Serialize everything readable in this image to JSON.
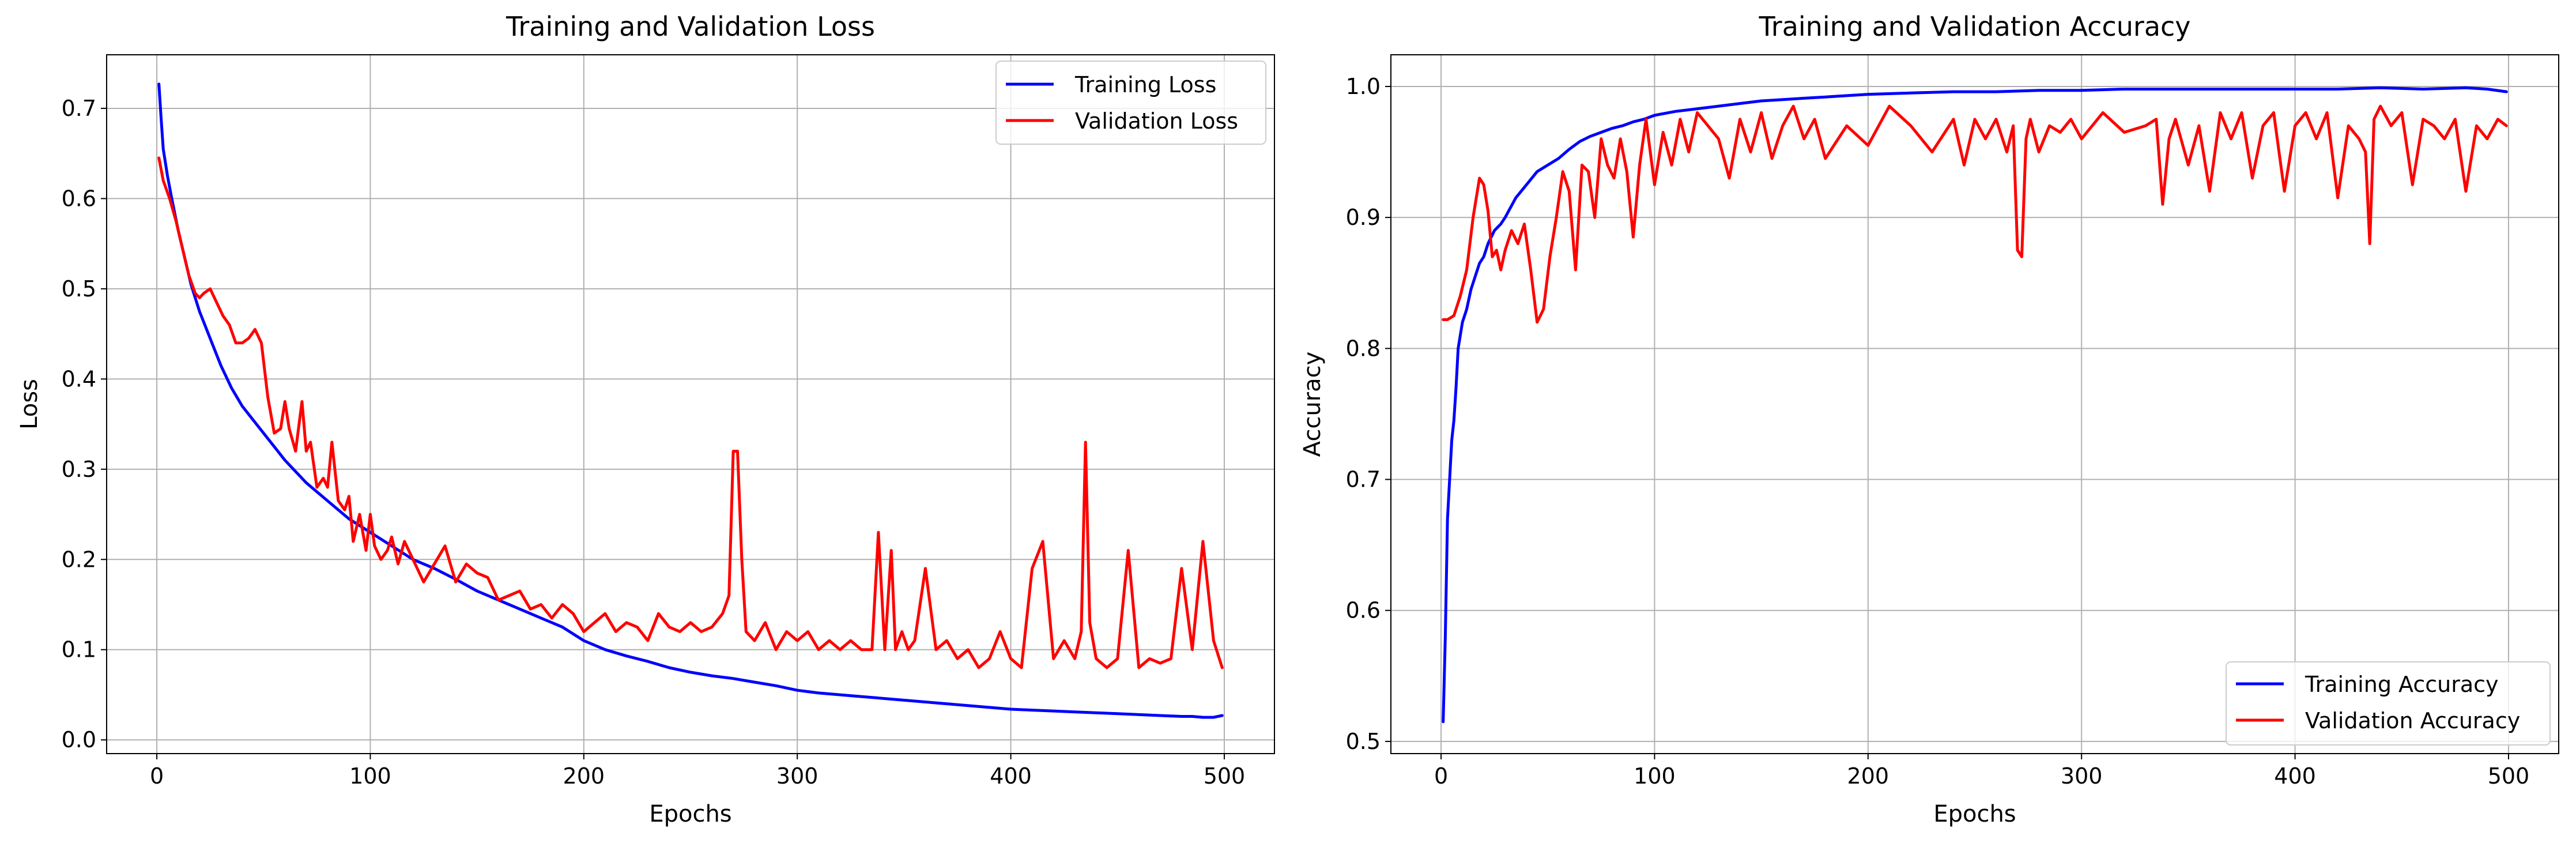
{
  "figure": {
    "colors": {
      "training": "#0000ff",
      "validation": "#ff0000",
      "grid": "#b0b0b0",
      "axes": "#000000",
      "legend_border": "#cccccc"
    }
  },
  "chart_data": [
    {
      "type": "line",
      "title": "Training and Validation Loss",
      "xlabel": "Epochs",
      "ylabel": "Loss",
      "xlim": [
        -23.5,
        523.5
      ],
      "ylim": [
        -0.0152,
        0.7594
      ],
      "x_ticks": [
        0,
        100,
        200,
        300,
        400,
        500
      ],
      "y_ticks": [
        0.0,
        0.1,
        0.2,
        0.3,
        0.4,
        0.5,
        0.6,
        0.7
      ],
      "x_tick_labels": [
        "0",
        "100",
        "200",
        "300",
        "400",
        "500"
      ],
      "y_tick_labels": [
        "0.0",
        "0.1",
        "0.2",
        "0.3",
        "0.4",
        "0.5",
        "0.6",
        "0.7"
      ],
      "grid": true,
      "legend_position": "top-right",
      "series": [
        {
          "name": "Training Loss",
          "color": "#0000ff",
          "x": [
            1,
            2,
            3,
            5,
            7,
            10,
            13,
            16,
            20,
            25,
            30,
            35,
            40,
            45,
            50,
            55,
            60,
            70,
            80,
            90,
            100,
            110,
            120,
            130,
            140,
            150,
            160,
            170,
            180,
            190,
            200,
            210,
            220,
            230,
            240,
            250,
            260,
            270,
            280,
            290,
            300,
            310,
            320,
            330,
            340,
            350,
            360,
            370,
            380,
            390,
            400,
            410,
            420,
            430,
            440,
            450,
            460,
            470,
            480,
            485,
            490,
            495,
            499
          ],
          "y": [
            0.727,
            0.69,
            0.655,
            0.625,
            0.6,
            0.565,
            0.535,
            0.505,
            0.475,
            0.445,
            0.415,
            0.39,
            0.37,
            0.355,
            0.34,
            0.325,
            0.31,
            0.285,
            0.265,
            0.245,
            0.23,
            0.215,
            0.2,
            0.19,
            0.178,
            0.165,
            0.155,
            0.145,
            0.135,
            0.125,
            0.11,
            0.1,
            0.093,
            0.087,
            0.08,
            0.075,
            0.071,
            0.068,
            0.064,
            0.06,
            0.055,
            0.052,
            0.05,
            0.048,
            0.046,
            0.044,
            0.042,
            0.04,
            0.038,
            0.036,
            0.034,
            0.033,
            0.032,
            0.031,
            0.03,
            0.029,
            0.028,
            0.027,
            0.026,
            0.026,
            0.025,
            0.025,
            0.027
          ]
        },
        {
          "name": "Validation Loss",
          "color": "#ff0000",
          "x": [
            1,
            3,
            6,
            9,
            12,
            15,
            18,
            20,
            22,
            25,
            28,
            31,
            34,
            37,
            40,
            43,
            46,
            49,
            52,
            55,
            58,
            60,
            62,
            65,
            68,
            70,
            72,
            75,
            78,
            80,
            82,
            85,
            88,
            90,
            92,
            95,
            98,
            100,
            102,
            105,
            108,
            110,
            113,
            116,
            120,
            125,
            130,
            135,
            140,
            145,
            150,
            155,
            160,
            165,
            170,
            175,
            180,
            185,
            190,
            195,
            200,
            205,
            210,
            215,
            220,
            225,
            230,
            235,
            240,
            245,
            250,
            255,
            260,
            265,
            268,
            270,
            272,
            274,
            276,
            280,
            285,
            290,
            295,
            300,
            305,
            310,
            315,
            320,
            325,
            330,
            335,
            338,
            341,
            344,
            346,
            349,
            352,
            355,
            360,
            365,
            370,
            375,
            380,
            385,
            390,
            395,
            400,
            405,
            410,
            415,
            420,
            425,
            430,
            433,
            435,
            437,
            440,
            445,
            450,
            455,
            460,
            465,
            470,
            475,
            480,
            485,
            490,
            495,
            499
          ],
          "y": [
            0.645,
            0.62,
            0.6,
            0.575,
            0.545,
            0.515,
            0.495,
            0.49,
            0.495,
            0.5,
            0.485,
            0.47,
            0.46,
            0.44,
            0.44,
            0.445,
            0.455,
            0.44,
            0.38,
            0.34,
            0.345,
            0.375,
            0.345,
            0.32,
            0.375,
            0.32,
            0.33,
            0.28,
            0.29,
            0.28,
            0.33,
            0.265,
            0.255,
            0.27,
            0.22,
            0.25,
            0.21,
            0.25,
            0.215,
            0.2,
            0.21,
            0.225,
            0.195,
            0.22,
            0.2,
            0.175,
            0.195,
            0.215,
            0.175,
            0.195,
            0.185,
            0.18,
            0.155,
            0.16,
            0.165,
            0.145,
            0.15,
            0.135,
            0.15,
            0.14,
            0.12,
            0.13,
            0.14,
            0.12,
            0.13,
            0.125,
            0.11,
            0.14,
            0.125,
            0.12,
            0.13,
            0.12,
            0.125,
            0.14,
            0.16,
            0.32,
            0.32,
            0.2,
            0.12,
            0.11,
            0.13,
            0.1,
            0.12,
            0.11,
            0.12,
            0.1,
            0.11,
            0.1,
            0.11,
            0.1,
            0.1,
            0.23,
            0.1,
            0.21,
            0.1,
            0.12,
            0.1,
            0.11,
            0.19,
            0.1,
            0.11,
            0.09,
            0.1,
            0.08,
            0.09,
            0.12,
            0.09,
            0.08,
            0.19,
            0.22,
            0.09,
            0.11,
            0.09,
            0.12,
            0.33,
            0.13,
            0.09,
            0.08,
            0.09,
            0.21,
            0.08,
            0.09,
            0.085,
            0.09,
            0.19,
            0.1,
            0.22,
            0.11,
            0.08
          ]
        }
      ]
    },
    {
      "type": "line",
      "title": "Training and Validation Accuracy",
      "xlabel": "Epochs",
      "ylabel": "Accuracy",
      "xlim": [
        -23.5,
        523.5
      ],
      "ylim": [
        0.4907,
        1.0242
      ],
      "x_ticks": [
        0,
        100,
        200,
        300,
        400,
        500
      ],
      "y_ticks": [
        0.5,
        0.6,
        0.7,
        0.8,
        0.9,
        1.0
      ],
      "x_tick_labels": [
        "0",
        "100",
        "200",
        "300",
        "400",
        "500"
      ],
      "y_tick_labels": [
        "0.5",
        "0.6",
        "0.7",
        "0.8",
        "0.9",
        "1.0"
      ],
      "grid": true,
      "legend_position": "bottom-right",
      "series": [
        {
          "name": "Training Accuracy",
          "color": "#0000ff",
          "x": [
            1,
            2,
            3,
            4,
            5,
            6,
            7,
            8,
            9,
            10,
            12,
            14,
            16,
            18,
            20,
            22,
            25,
            28,
            30,
            35,
            40,
            45,
            50,
            55,
            60,
            65,
            70,
            75,
            80,
            85,
            90,
            95,
            100,
            110,
            120,
            130,
            140,
            150,
            160,
            170,
            180,
            190,
            200,
            220,
            240,
            260,
            280,
            300,
            320,
            340,
            360,
            380,
            400,
            420,
            440,
            460,
            480,
            490,
            499
          ],
          "y": [
            0.515,
            0.58,
            0.67,
            0.7,
            0.73,
            0.745,
            0.77,
            0.8,
            0.81,
            0.82,
            0.83,
            0.845,
            0.855,
            0.865,
            0.87,
            0.88,
            0.89,
            0.895,
            0.9,
            0.915,
            0.925,
            0.935,
            0.94,
            0.945,
            0.952,
            0.958,
            0.962,
            0.965,
            0.968,
            0.97,
            0.973,
            0.975,
            0.978,
            0.981,
            0.983,
            0.985,
            0.987,
            0.989,
            0.99,
            0.991,
            0.992,
            0.993,
            0.994,
            0.995,
            0.996,
            0.996,
            0.997,
            0.997,
            0.998,
            0.998,
            0.998,
            0.998,
            0.998,
            0.998,
            0.999,
            0.998,
            0.999,
            0.998,
            0.996
          ]
        },
        {
          "name": "Validation Accuracy",
          "color": "#ff0000",
          "x": [
            1,
            3,
            6,
            9,
            12,
            15,
            18,
            20,
            22,
            24,
            26,
            28,
            30,
            33,
            36,
            39,
            42,
            45,
            48,
            51,
            54,
            57,
            60,
            63,
            66,
            69,
            72,
            75,
            78,
            81,
            84,
            87,
            90,
            93,
            96,
            100,
            104,
            108,
            112,
            116,
            120,
            125,
            130,
            135,
            140,
            145,
            150,
            155,
            160,
            165,
            170,
            175,
            180,
            190,
            200,
            210,
            220,
            230,
            240,
            245,
            250,
            255,
            260,
            265,
            268,
            270,
            272,
            274,
            276,
            280,
            285,
            290,
            295,
            300,
            310,
            320,
            330,
            335,
            338,
            341,
            344,
            350,
            355,
            360,
            365,
            370,
            375,
            380,
            385,
            390,
            395,
            400,
            405,
            410,
            415,
            420,
            425,
            430,
            433,
            435,
            437,
            440,
            445,
            450,
            455,
            460,
            465,
            470,
            475,
            480,
            485,
            490,
            495,
            499
          ],
          "y": [
            0.822,
            0.822,
            0.825,
            0.84,
            0.86,
            0.9,
            0.93,
            0.925,
            0.905,
            0.87,
            0.875,
            0.86,
            0.875,
            0.89,
            0.88,
            0.895,
            0.86,
            0.82,
            0.83,
            0.87,
            0.9,
            0.935,
            0.92,
            0.86,
            0.94,
            0.935,
            0.9,
            0.96,
            0.94,
            0.93,
            0.96,
            0.935,
            0.885,
            0.94,
            0.975,
            0.925,
            0.965,
            0.94,
            0.975,
            0.95,
            0.98,
            0.97,
            0.96,
            0.93,
            0.975,
            0.95,
            0.98,
            0.945,
            0.97,
            0.985,
            0.96,
            0.975,
            0.945,
            0.97,
            0.955,
            0.985,
            0.97,
            0.95,
            0.975,
            0.94,
            0.975,
            0.96,
            0.975,
            0.95,
            0.97,
            0.875,
            0.87,
            0.96,
            0.975,
            0.95,
            0.97,
            0.965,
            0.975,
            0.96,
            0.98,
            0.965,
            0.97,
            0.975,
            0.91,
            0.96,
            0.975,
            0.94,
            0.97,
            0.92,
            0.98,
            0.96,
            0.98,
            0.93,
            0.97,
            0.98,
            0.92,
            0.97,
            0.98,
            0.96,
            0.98,
            0.915,
            0.97,
            0.96,
            0.95,
            0.88,
            0.975,
            0.985,
            0.97,
            0.98,
            0.925,
            0.975,
            0.97,
            0.96,
            0.975,
            0.92,
            0.97,
            0.96,
            0.975,
            0.97
          ]
        }
      ]
    }
  ]
}
